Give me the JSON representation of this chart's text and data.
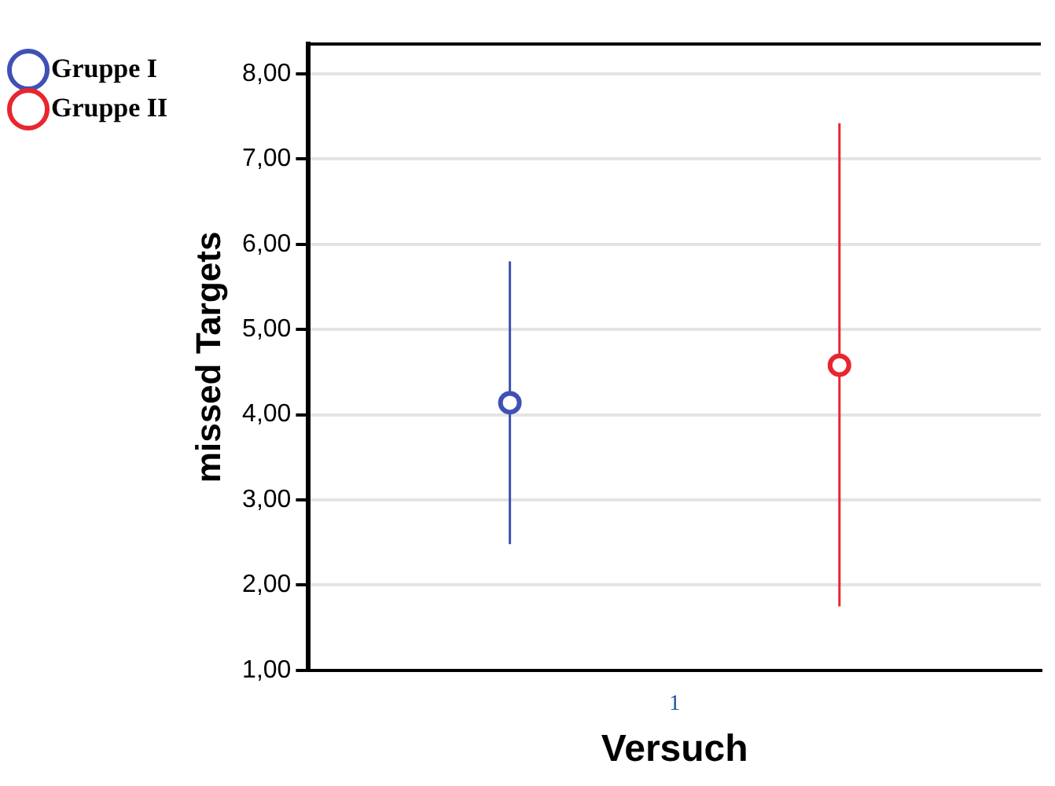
{
  "chart_data": {
    "type": "scatter",
    "xlabel": "Versuch",
    "ylabel": "missed Targets",
    "categories": [
      "1"
    ],
    "series": [
      {
        "name": "Gruppe I",
        "color": "#3f51b5",
        "values": [
          4.14
        ],
        "errors": [
          [
            2.48,
            5.8
          ]
        ]
      },
      {
        "name": "Gruppe II",
        "color": "#e8262f",
        "values": [
          4.58
        ],
        "errors": [
          [
            1.75,
            7.42
          ]
        ]
      }
    ],
    "ylim": [
      1,
      8.35
    ],
    "yticks": [
      {
        "value": 1,
        "label": "1,00"
      },
      {
        "value": 2,
        "label": "2,00"
      },
      {
        "value": 3,
        "label": "3,00"
      },
      {
        "value": 4,
        "label": "4,00"
      },
      {
        "value": 5,
        "label": "5,00"
      },
      {
        "value": 6,
        "label": "6,00"
      },
      {
        "value": 7,
        "label": "7,00"
      },
      {
        "value": 8,
        "label": "8,00"
      }
    ],
    "grid": "y",
    "legend": "top left",
    "marker": "circle"
  }
}
